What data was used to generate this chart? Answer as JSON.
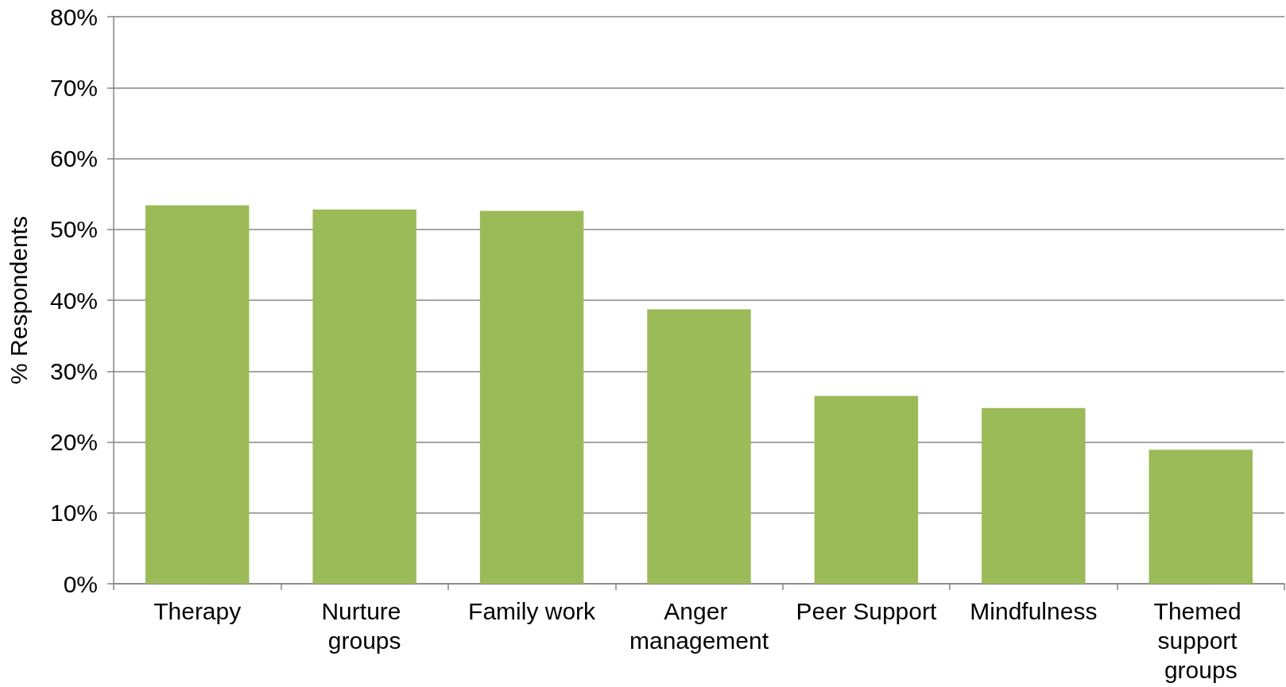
{
  "chart_data": {
    "type": "bar",
    "ylabel": "% Respondents",
    "categories": [
      "Therapy",
      "Nurture groups",
      "Family work",
      "Anger management",
      "Peer Support",
      "Mindfulness",
      "Themed support groups"
    ],
    "values": [
      53.4,
      52.8,
      52.6,
      38.7,
      26.5,
      24.8,
      18.9
    ],
    "color": "#9bbb59",
    "ylim": [
      0,
      80
    ],
    "yticks": [
      {
        "value": 0,
        "label": "0%"
      },
      {
        "value": 10,
        "label": "10%"
      },
      {
        "value": 20,
        "label": "20%"
      },
      {
        "value": 30,
        "label": "30%"
      },
      {
        "value": 40,
        "label": "40%"
      },
      {
        "value": 50,
        "label": "50%"
      },
      {
        "value": 60,
        "label": "60%"
      },
      {
        "value": 70,
        "label": "70%"
      },
      {
        "value": 80,
        "label": "80%"
      }
    ],
    "grid": true
  }
}
